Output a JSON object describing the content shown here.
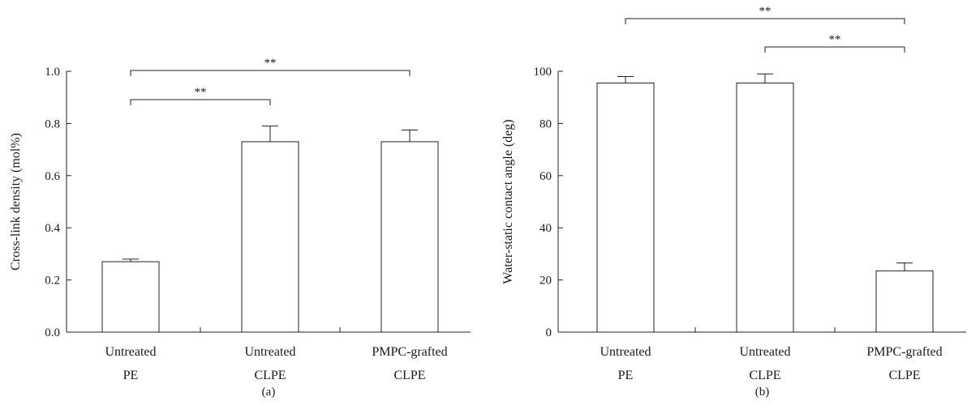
{
  "chart_data": [
    {
      "panel": "(a)",
      "type": "bar",
      "ylabel": "Cross-link density (mol%)",
      "ylim": [
        0,
        1.0
      ],
      "yticks": [
        "0.0",
        "0.2",
        "0.4",
        "0.6",
        "0.8",
        "1.0"
      ],
      "categories": [
        {
          "line1": "Untreated",
          "line2": "PE"
        },
        {
          "line1": "Untreated",
          "line2": "CLPE"
        },
        {
          "line1": "PMPC-grafted",
          "line2": "CLPE"
        }
      ],
      "values": [
        0.27,
        0.73,
        0.73
      ],
      "errors": [
        0.01,
        0.06,
        0.045
      ],
      "significance": [
        {
          "from": 0,
          "to": 1,
          "label": "**"
        },
        {
          "from": 0,
          "to": 2,
          "label": "**"
        }
      ]
    },
    {
      "panel": "(b)",
      "type": "bar",
      "ylabel": "Water-static contact angle (deg)",
      "ylim": [
        0,
        100
      ],
      "yticks": [
        "0",
        "20",
        "40",
        "60",
        "80",
        "100"
      ],
      "categories": [
        {
          "line1": "Untreated",
          "line2": "PE"
        },
        {
          "line1": "Untreated",
          "line2": "CLPE"
        },
        {
          "line1": "PMPC-grafted",
          "line2": "CLPE"
        }
      ],
      "values": [
        95.5,
        95.5,
        23.5
      ],
      "errors": [
        2.5,
        3.5,
        3
      ],
      "significance": [
        {
          "from": 0,
          "to": 2,
          "label": "**"
        },
        {
          "from": 1,
          "to": 2,
          "label": "**"
        }
      ]
    }
  ]
}
